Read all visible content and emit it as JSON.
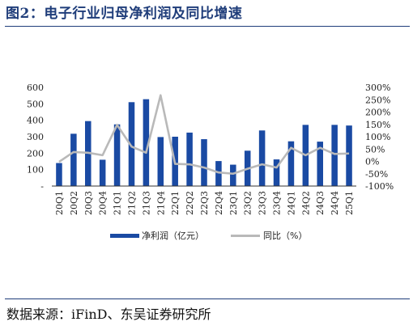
{
  "figure": {
    "title": "图2：电子行业归母净利润及同比增速",
    "source": "数据来源：iFinD、东吴证券研究所"
  },
  "colors": {
    "title": "#1f3d7a",
    "bar": "#1a4aa3",
    "line": "#b9b9b9"
  },
  "chart_data": {
    "type": "bar",
    "title": "",
    "categories": [
      "20Q1",
      "20Q2",
      "20Q3",
      "20Q4",
      "21Q1",
      "21Q2",
      "21Q3",
      "21Q4",
      "22Q1",
      "22Q2",
      "22Q3",
      "22Q4",
      "23Q1",
      "23Q2",
      "23Q3",
      "23Q4",
      "24Q1",
      "24Q2",
      "24Q3",
      "24Q4",
      "25Q1"
    ],
    "y_left": {
      "ticks": [
        "600",
        "500",
        "400",
        "300",
        "200",
        "100",
        "-"
      ],
      "ylim": [
        0,
        600
      ]
    },
    "y_right": {
      "ticks": [
        "300%",
        "250%",
        "200%",
        "150%",
        "100%",
        "50%",
        "0%",
        "-50%",
        "-100%"
      ],
      "ylim": [
        -100,
        300
      ]
    },
    "series": [
      {
        "name": "净利润（亿元）",
        "type": "bar",
        "axis": "left",
        "values": [
          140,
          318,
          395,
          160,
          375,
          510,
          528,
          298,
          300,
          325,
          285,
          152,
          130,
          215,
          338,
          162,
          272,
          372,
          270,
          372,
          368
        ]
      },
      {
        "name": "同比（%）",
        "type": "line",
        "axis": "right",
        "values": [
          -2,
          38,
          35,
          25,
          148,
          60,
          35,
          268,
          -10,
          -12,
          -25,
          -45,
          -50,
          -30,
          -12,
          -25,
          55,
          25,
          55,
          30,
          32
        ]
      }
    ],
    "legend_position": "bottom",
    "grid": false
  }
}
